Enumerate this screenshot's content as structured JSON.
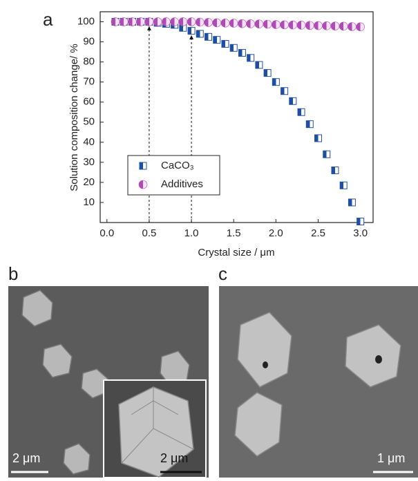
{
  "chart_data": {
    "type": "scatter",
    "panel_label": "a",
    "y_label": "Solution composition change/ %",
    "x_label": "Crystal size / μm",
    "xlim": [
      -0.08,
      3.15
    ],
    "ylim": [
      0,
      105
    ],
    "xticks": [
      {
        "value": 0,
        "label": "0.0"
      },
      0.5,
      {
        "value": 1,
        "label": "1.0"
      },
      1.5,
      {
        "value": 2,
        "label": "2.0"
      },
      2.5,
      {
        "value": 3,
        "label": "3.0"
      }
    ],
    "yticks": [
      10,
      20,
      30,
      40,
      50,
      60,
      70,
      80,
      90,
      100
    ],
    "x": [
      0.1,
      0.2,
      0.3,
      0.4,
      0.5,
      0.6,
      0.7,
      0.8,
      0.9,
      1.0,
      1.1,
      1.2,
      1.3,
      1.4,
      1.5,
      1.6,
      1.7,
      1.8,
      1.9,
      2.0,
      2.1,
      2.2,
      2.3,
      2.4,
      2.5,
      2.6,
      2.7,
      2.8,
      2.9,
      3.0
    ],
    "series": [
      {
        "name": "CaCO₃",
        "color": "#1f4fa3",
        "marker": "square",
        "values": [
          100,
          100,
          100,
          100,
          100,
          99.5,
          99,
          98.5,
          97,
          95.5,
          94,
          92.5,
          91,
          89,
          87,
          84.5,
          82,
          78.5,
          74.5,
          70,
          65.5,
          60.5,
          55,
          49,
          42,
          34,
          26,
          18.5,
          10,
          0.5
        ]
      },
      {
        "name": "Additives",
        "color": "#b04ab4",
        "marker": "circle",
        "values": [
          100,
          100,
          100,
          100,
          100,
          100,
          100,
          100,
          100,
          100,
          99.8,
          99.7,
          99.5,
          99.4,
          99.3,
          99.1,
          99,
          98.9,
          98.8,
          98.6,
          98.5,
          98.4,
          98.3,
          98.2,
          98.1,
          98,
          97.9,
          97.8,
          97.6,
          97.5
        ]
      }
    ],
    "guides": [
      0.5,
      1.0
    ],
    "legend": "lower left"
  },
  "panels": [
    {
      "label": "b",
      "scale_bar": "2 μm",
      "inset_scale_bar": "2 μm"
    },
    {
      "label": "c",
      "scale_bar": "1 μm"
    }
  ]
}
